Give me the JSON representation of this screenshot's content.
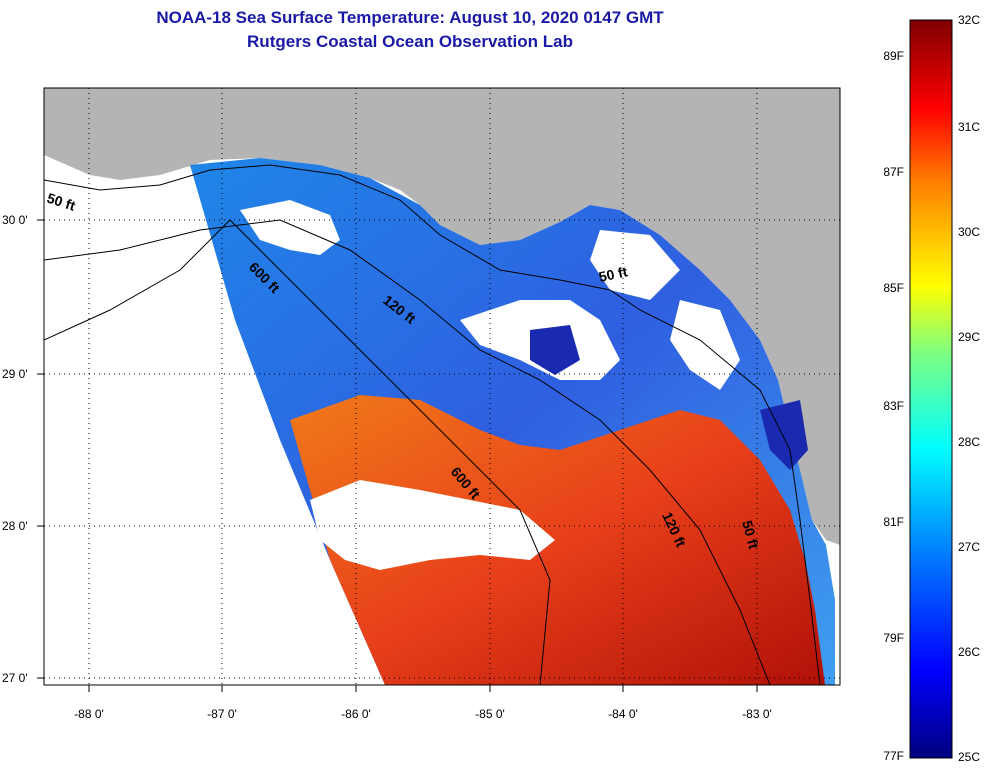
{
  "header": {
    "title": "NOAA-18 Sea Surface Temperature:  August 10, 2020 0147 GMT",
    "subtitle": "Rutgers Coastal Ocean Observation Lab"
  },
  "map": {
    "longitude_labels": [
      "-88 0'",
      "-87 0'",
      "-86 0'",
      "-85 0'",
      "-84 0'",
      "-83 0'"
    ],
    "latitude_labels": [
      "30 0'",
      "29 0'",
      "28 0'",
      "27 0'"
    ],
    "contour_labels": [
      "50 ft",
      "600 ft",
      "120 ft",
      "50 ft",
      "600 ft",
      "120 ft",
      "50 ft"
    ],
    "colors": {
      "land": "#b4b4b4",
      "clouds": "#ffffff",
      "warm": "#e03010",
      "cool": "#1e6ae0"
    }
  },
  "colorbar": {
    "celsius": [
      "32C",
      "31C",
      "30C",
      "29C",
      "28C",
      "27C",
      "26C",
      "25C"
    ],
    "fahrenheit": [
      "89F",
      "87F",
      "85F",
      "83F",
      "81F",
      "79F",
      "77F"
    ],
    "colors": [
      "#00007f",
      "#0000ff",
      "#007fff",
      "#00ffff",
      "#7fff7f",
      "#ffff00",
      "#ff7f00",
      "#ff0000",
      "#7f0000"
    ]
  }
}
